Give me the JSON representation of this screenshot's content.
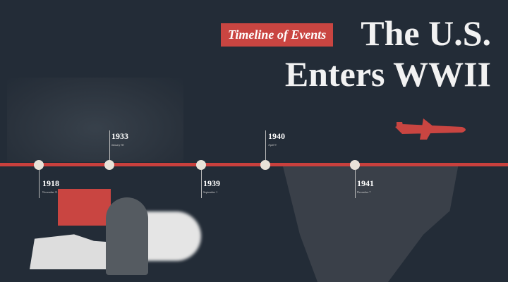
{
  "badge": "Timeline of Events",
  "title_line1": "The U.S.",
  "title_line2": "Enters WWII",
  "colors": {
    "background": "#232c37",
    "accent": "#c9403d",
    "node": "#e8e2d8"
  },
  "events": [
    {
      "year": "1918",
      "date": "November 11"
    },
    {
      "year": "1933",
      "date": "January 30"
    },
    {
      "year": "1939",
      "date": "September 1"
    },
    {
      "year": "1940",
      "date": "April 9"
    },
    {
      "year": "1941",
      "date": "December 7"
    }
  ]
}
